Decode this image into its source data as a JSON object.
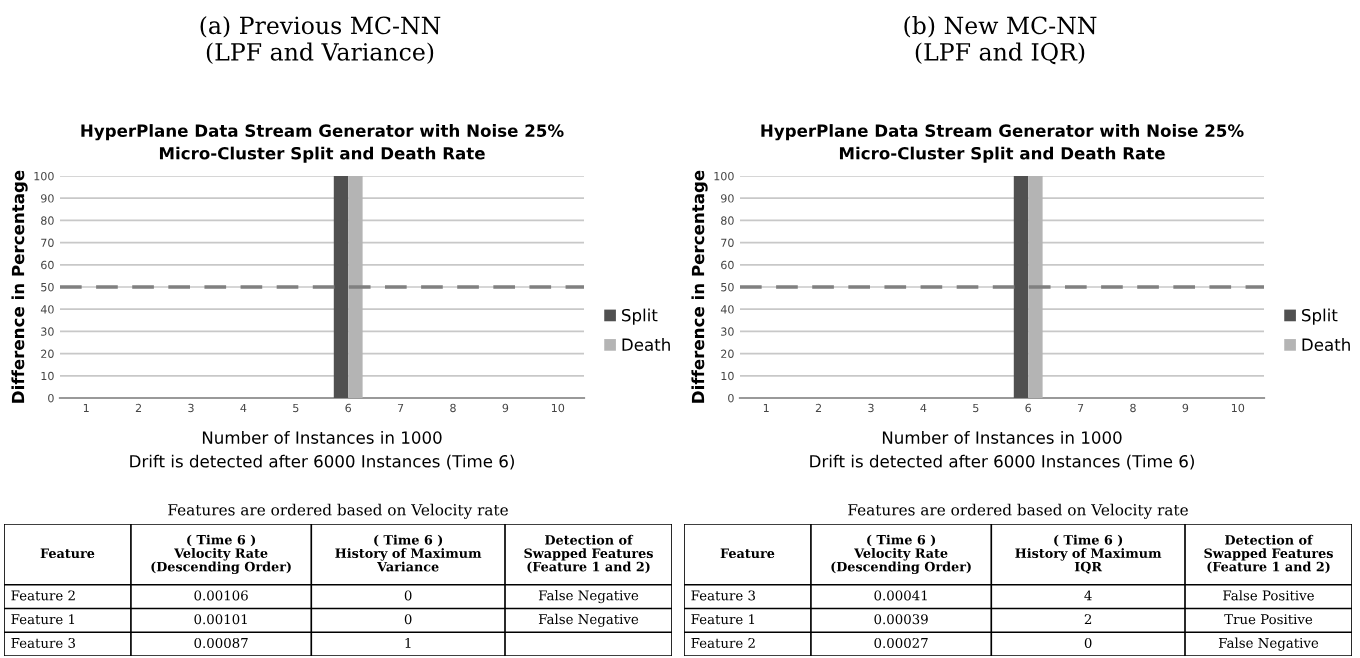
{
  "chart_data": [
    {
      "type": "bar",
      "title": "(a) Previous MC-NN\n(LPF and Variance)",
      "subtitle": "HyperPlane Data Stream Generator with Noise 25%\nMicro-Cluster Split and Death Rate",
      "xlabel": "Number of Instances in 1000",
      "ylabel": "Difference in Percentage",
      "annotations": [
        "Drift is detected after 6000 Instances (Time 6)"
      ],
      "categories": [
        "1",
        "2",
        "3",
        "4",
        "5",
        "6",
        "7",
        "8",
        "9",
        "10"
      ],
      "series": [
        {
          "name": "Split",
          "color": "#505050",
          "values": [
            null,
            null,
            null,
            null,
            null,
            100,
            null,
            null,
            null,
            null
          ]
        },
        {
          "name": "Death",
          "color": "#b4b4b4",
          "values": [
            null,
            null,
            null,
            null,
            null,
            100,
            null,
            null,
            null,
            null
          ]
        }
      ],
      "ylim": [
        0,
        100
      ],
      "yticks": [
        0,
        10,
        20,
        30,
        40,
        50,
        60,
        70,
        80,
        90,
        100
      ],
      "grid": "y",
      "legend": "right",
      "ref_lines": [
        {
          "axis": "y",
          "value": 50,
          "color": "#808080",
          "line_style": "dashed"
        }
      ]
    },
    {
      "type": "bar",
      "title": "(b) New MC-NN\n(LPF and IQR)",
      "subtitle": "HyperPlane Data Stream Generator with Noise 25%\nMicro-Cluster Split and Death Rate",
      "xlabel": "Number of Instances in 1000",
      "ylabel": "Difference in Percentage",
      "annotations": [
        "Drift is detected after 6000 Instances (Time 6)"
      ],
      "categories": [
        "1",
        "2",
        "3",
        "4",
        "5",
        "6",
        "7",
        "8",
        "9",
        "10"
      ],
      "series": [
        {
          "name": "Split",
          "color": "#505050",
          "values": [
            null,
            null,
            null,
            null,
            null,
            100,
            null,
            null,
            null,
            null
          ]
        },
        {
          "name": "Death",
          "color": "#b4b4b4",
          "values": [
            null,
            null,
            null,
            null,
            null,
            100,
            null,
            null,
            null,
            null
          ]
        }
      ],
      "ylim": [
        0,
        100
      ],
      "yticks": [
        0,
        10,
        20,
        30,
        40,
        50,
        60,
        70,
        80,
        90,
        100
      ],
      "grid": "y",
      "legend": "right",
      "ref_lines": [
        {
          "axis": "y",
          "value": 50,
          "color": "#808080",
          "line_style": "dashed"
        }
      ]
    },
    {
      "type": "other",
      "title": "Features are ordered based on Velocity rate",
      "annotations": [
        "Feature",
        "( Time 6 )\nVelocity Rate\n(Descending Order)",
        "( Time 6 )\nHistory of Maximum\nVariance",
        "Detection of\nSwapped Features\n(Feature 1 and 2)",
        "Feature 2",
        "0.00106",
        "0",
        "False Negative",
        "Feature 1",
        "0.00101",
        "0",
        "False Negative",
        "Feature 3",
        "0.00087",
        "1"
      ]
    },
    {
      "type": "other",
      "title": "Features are ordered based on Velocity rate",
      "annotations": [
        "Feature",
        "( Time 6 )\nVelocity Rate\n(Descending Order)",
        "( Time 6 )\nHistory of Maximum\nIQR",
        "Detection of\nSwapped Features\n(Feature 1 and 2)",
        "Feature 3",
        "0.00041",
        "4",
        "False Positive",
        "Feature 1",
        "0.00039",
        "2",
        "True Positive",
        "Feature 2",
        "0.00027",
        "0",
        "False Negative"
      ]
    }
  ]
}
